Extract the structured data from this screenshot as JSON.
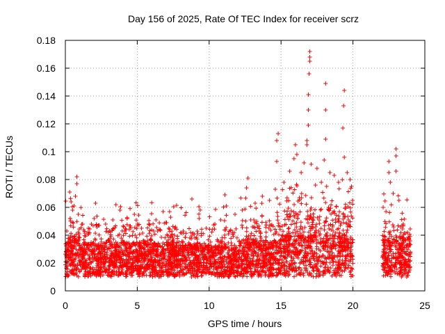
{
  "chart_data": {
    "type": "scatter",
    "title": "Day 156 of 2025, Rate Of TEC Index for receiver scrz",
    "xlabel": "GPS time / hours",
    "ylabel": "ROTI / TECUs",
    "xlim": [
      0,
      25
    ],
    "ylim": [
      0,
      0.18
    ],
    "x_ticks": [
      0,
      5,
      10,
      15,
      20,
      25
    ],
    "x_tick_labels": [
      "0",
      "5",
      "10",
      "15",
      "20",
      "25"
    ],
    "y_ticks": [
      0,
      0.02,
      0.04,
      0.06,
      0.08,
      0.1,
      0.12,
      0.14,
      0.16,
      0.18
    ],
    "y_tick_labels": [
      "0",
      "0.02",
      "0.04",
      "0.06",
      "0.08",
      "0.1",
      "0.12",
      "0.14",
      "0.16",
      "0.18"
    ],
    "grid": true,
    "marker": "plus",
    "color": "#ff0000",
    "series": [
      {
        "name": "ROTI",
        "note": "representative subset of points; dense band 0.01-0.04 from 0-20 h and 22-24 h, gap 20-22 h",
        "points": [
          [
            0.1,
            0.043
          ],
          [
            0.3,
            0.071
          ],
          [
            0.4,
            0.064
          ],
          [
            0.5,
            0.058
          ],
          [
            0.6,
            0.061
          ],
          [
            0.7,
            0.068
          ],
          [
            0.8,
            0.077
          ],
          [
            0.8,
            0.082
          ],
          [
            0.9,
            0.055
          ],
          [
            1.2,
            0.048
          ],
          [
            1.6,
            0.045
          ],
          [
            2.0,
            0.052
          ],
          [
            2.1,
            0.063
          ],
          [
            2.3,
            0.047
          ],
          [
            2.8,
            0.048
          ],
          [
            3.3,
            0.051
          ],
          [
            3.8,
            0.058
          ],
          [
            4.3,
            0.052
          ],
          [
            4.8,
            0.055
          ],
          [
            5.3,
            0.045
          ],
          [
            5.8,
            0.048
          ],
          [
            6.3,
            0.051
          ],
          [
            6.8,
            0.057
          ],
          [
            7.0,
            0.049
          ],
          [
            7.6,
            0.045
          ],
          [
            8.2,
            0.043
          ],
          [
            8.8,
            0.066
          ],
          [
            9.3,
            0.052
          ],
          [
            9.8,
            0.045
          ],
          [
            10.4,
            0.048
          ],
          [
            10.8,
            0.051
          ],
          [
            11.1,
            0.069
          ],
          [
            11.2,
            0.061
          ],
          [
            11.8,
            0.055
          ],
          [
            12.3,
            0.058
          ],
          [
            12.6,
            0.074
          ],
          [
            12.7,
            0.081
          ],
          [
            13.2,
            0.063
          ],
          [
            13.7,
            0.068
          ],
          [
            14.2,
            0.065
          ],
          [
            14.6,
            0.073
          ],
          [
            14.7,
            0.093
          ],
          [
            14.7,
            0.108
          ],
          [
            14.8,
            0.113
          ],
          [
            15.2,
            0.078
          ],
          [
            15.6,
            0.086
          ],
          [
            15.9,
            0.095
          ],
          [
            16.0,
            0.105
          ],
          [
            16.1,
            0.098
          ],
          [
            16.4,
            0.085
          ],
          [
            16.6,
            0.092
          ],
          [
            16.8,
            0.105
          ],
          [
            16.8,
            0.108
          ],
          [
            16.9,
            0.119
          ],
          [
            16.9,
            0.13
          ],
          [
            16.9,
            0.141
          ],
          [
            16.95,
            0.156
          ],
          [
            17.0,
            0.165
          ],
          [
            17.0,
            0.172
          ],
          [
            17.0,
            0.168
          ],
          [
            17.1,
            0.091
          ],
          [
            17.5,
            0.088
          ],
          [
            17.8,
            0.078
          ],
          [
            18.0,
            0.094
          ],
          [
            18.1,
            0.109
          ],
          [
            18.1,
            0.13
          ],
          [
            18.1,
            0.149
          ],
          [
            18.4,
            0.085
          ],
          [
            18.7,
            0.083
          ],
          [
            19.0,
            0.078
          ],
          [
            19.3,
            0.117
          ],
          [
            19.35,
            0.133
          ],
          [
            19.4,
            0.144
          ],
          [
            19.4,
            0.096
          ],
          [
            19.6,
            0.085
          ],
          [
            19.8,
            0.08
          ],
          [
            19.9,
            0.075
          ],
          [
            22.1,
            0.06
          ],
          [
            22.3,
            0.057
          ],
          [
            22.5,
            0.085
          ],
          [
            22.5,
            0.093
          ],
          [
            22.6,
            0.078
          ],
          [
            22.8,
            0.07
          ],
          [
            23.0,
            0.086
          ],
          [
            23.0,
            0.097
          ],
          [
            23.0,
            0.102
          ],
          [
            23.2,
            0.065
          ],
          [
            23.5,
            0.048
          ],
          [
            23.8,
            0.042
          ]
        ]
      }
    ]
  }
}
